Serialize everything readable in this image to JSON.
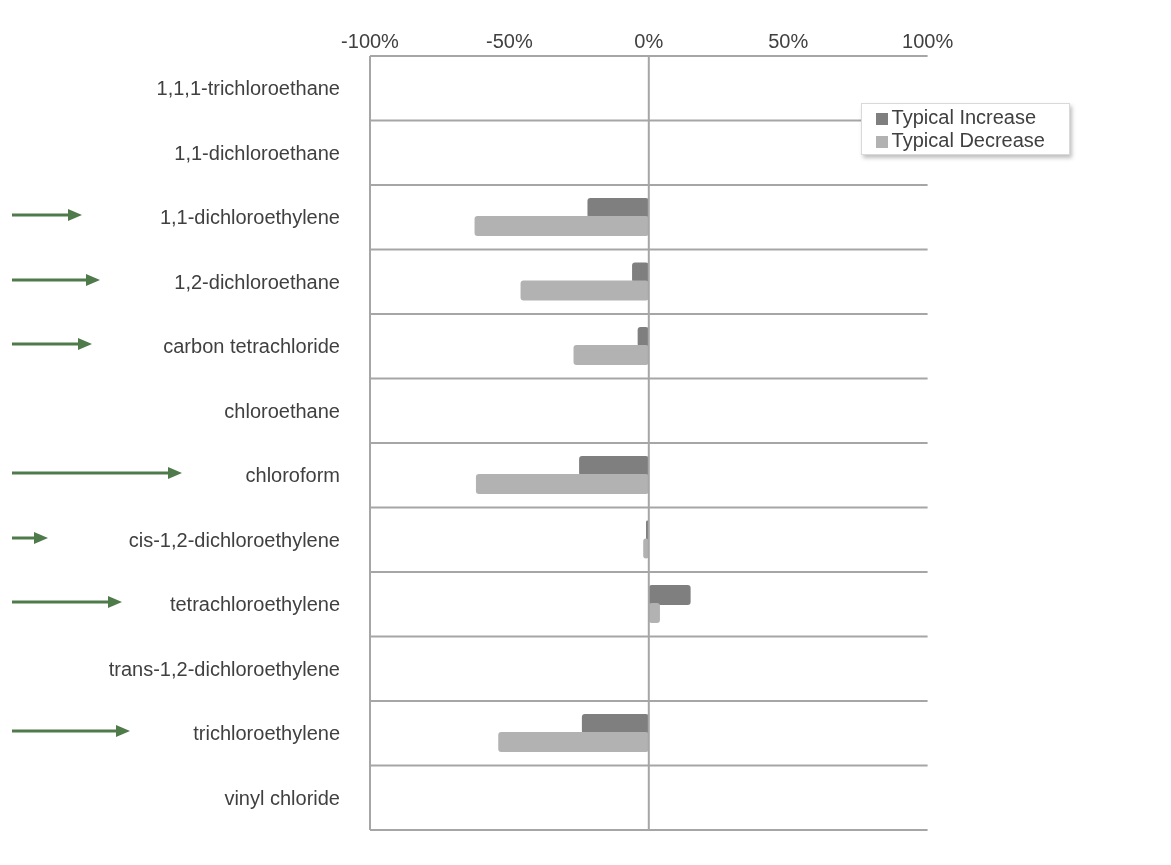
{
  "chart_data": {
    "type": "bar",
    "orientation": "horizontal",
    "categories": [
      "1,1,1-trichloroethane",
      "1,1-dichloroethane",
      "1,1-dichloroethylene",
      "1,2-dichloroethane",
      "carbon tetrachloride",
      "chloroethane",
      "chloroform",
      "cis-1,2-dichloroethylene",
      "tetrachloroethylene",
      "trans-1,2-dichloroethylene",
      "trichloroethylene",
      "vinyl chloride"
    ],
    "series": [
      {
        "name": "Typical Increase",
        "color": "#7f7f7f",
        "values": [
          0,
          0,
          -22,
          -6,
          -4,
          0,
          -25,
          -1,
          15,
          0,
          -24,
          0
        ]
      },
      {
        "name": "Typical Decrease",
        "color": "#b2b2b2",
        "values": [
          0,
          0,
          -62.5,
          -46,
          -27,
          0,
          -62,
          -2,
          4,
          0,
          -54,
          0
        ]
      }
    ],
    "xlim": [
      -100,
      100
    ],
    "xticks": [
      {
        "value": -100,
        "label": "-100%"
      },
      {
        "value": -50,
        "label": "-50%"
      },
      {
        "value": 0,
        "label": "0%"
      },
      {
        "value": 50,
        "label": "50%"
      },
      {
        "value": 100,
        "label": "100%"
      }
    ],
    "ref_lines": [
      {
        "axis": "x",
        "value": 0,
        "color": "#a6a6a6"
      }
    ],
    "grid": "y",
    "legend": "top right"
  }
}
